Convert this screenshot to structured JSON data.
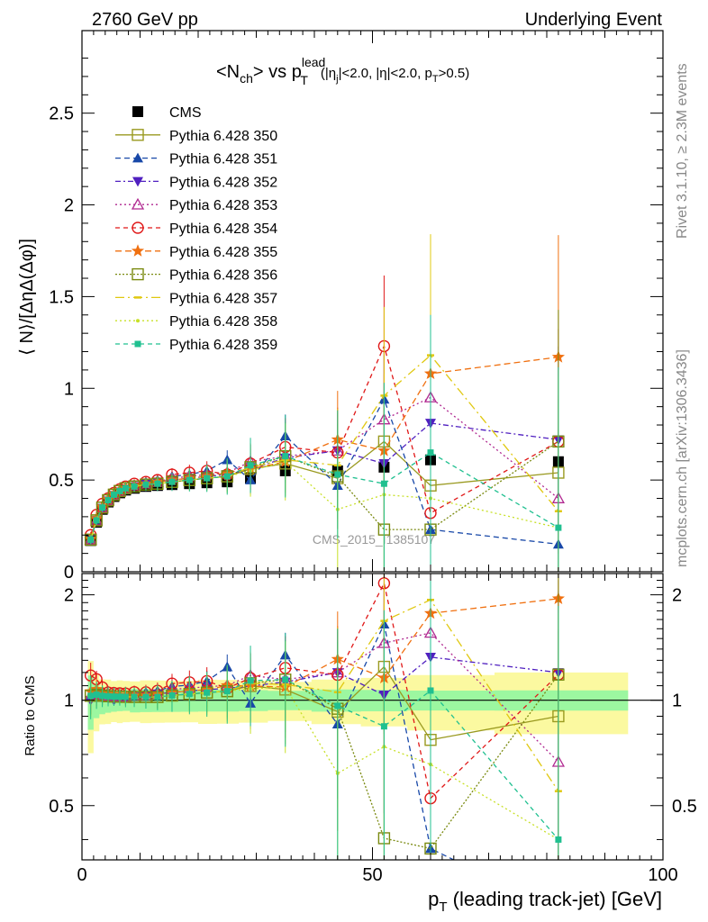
{
  "header": {
    "left": "2760 GeV pp",
    "right": "Underlying Event"
  },
  "side_labels": {
    "top": "Rivet 3.1.10, ≥ 2.3M events",
    "bottom": "mcplots.cern.ch [arXiv:1306.3436]"
  },
  "chart_data": {
    "type": "line",
    "title": {
      "main": "<N",
      "main_sub": "ch",
      "vs": "> vs p",
      "p_sup": "lead",
      "p_sub": "T",
      "cuts_a": "(|η",
      "cuts_a_sub": "j",
      "cuts_b": "|<2.0, |η|<2.0, p",
      "cuts_b_sub": "T",
      "cuts_c": ">0.5)"
    },
    "watermark": "CMS_2015_I1385107",
    "ylabel": "⟨ N⟩/[ΔηΔ(Δφ)]",
    "ratio_ylabel": "Ratio to CMS",
    "xlabel": {
      "main": "p",
      "sub": "T",
      "rest": " (leading track-jet) [GeV]"
    },
    "xlim": [
      0,
      100
    ],
    "ylim": [
      0,
      2.95
    ],
    "ratio_ylim": [
      0.35,
      2.3
    ],
    "x_ticks": [
      0,
      50,
      100
    ],
    "x_tick_labels": [
      "0",
      "50",
      "100"
    ],
    "y_ticks": [
      0,
      0.5,
      1,
      1.5,
      2,
      2.5
    ],
    "y_tick_labels": [
      "0",
      "0.5",
      "1",
      "1.5",
      "2",
      "2.5"
    ],
    "ratio_y_ticks": [
      0.5,
      1,
      2
    ],
    "ratio_y_tick_labels": [
      "0.5",
      "1",
      "2"
    ],
    "grid": false,
    "legend_position": "top-left",
    "x": [
      1.5,
      2.5,
      3.5,
      4.5,
      5.5,
      6.5,
      7.5,
      9,
      11,
      13,
      15.5,
      18.5,
      21.5,
      25,
      29,
      35,
      44,
      52,
      60,
      82
    ],
    "cms": [
      0.17,
      0.27,
      0.34,
      0.38,
      0.41,
      0.43,
      0.445,
      0.455,
      0.465,
      0.47,
      0.475,
      0.48,
      0.485,
      0.49,
      0.51,
      0.55,
      0.55,
      0.57,
      0.61,
      0.6
    ],
    "cms_band_inner": [
      0.03,
      0.03,
      0.03,
      0.03,
      0.03,
      0.03,
      0.03,
      0.035,
      0.035,
      0.035,
      0.035,
      0.035,
      0.035,
      0.035,
      0.035,
      0.035,
      0.04,
      0.04,
      0.04,
      0.04
    ],
    "cms_band_outer": [
      0.05,
      0.05,
      0.05,
      0.055,
      0.055,
      0.06,
      0.06,
      0.06,
      0.065,
      0.065,
      0.065,
      0.065,
      0.07,
      0.07,
      0.07,
      0.07,
      0.08,
      0.09,
      0.11,
      0.12
    ],
    "series": [
      {
        "name": "CMS",
        "color": "#000000",
        "marker": "square-filled",
        "dash": "",
        "values": [
          0.17,
          0.27,
          0.34,
          0.38,
          0.41,
          0.43,
          0.445,
          0.455,
          0.465,
          0.47,
          0.475,
          0.48,
          0.485,
          0.49,
          0.51,
          0.55,
          0.55,
          0.57,
          0.61,
          0.6
        ]
      },
      {
        "name": "Pythia 6.428 350",
        "color": "#9a9a20",
        "marker": "square-open",
        "dash": "",
        "values": [
          0.175,
          0.28,
          0.35,
          0.39,
          0.42,
          0.44,
          0.455,
          0.465,
          0.475,
          0.48,
          0.49,
          0.5,
          0.51,
          0.52,
          0.56,
          0.59,
          0.51,
          0.71,
          0.47,
          0.54
        ]
      },
      {
        "name": "Pythia 6.428 351",
        "color": "#1848a8",
        "marker": "triangle-up-filled",
        "dash": "6,4",
        "values": [
          0.175,
          0.285,
          0.355,
          0.395,
          0.425,
          0.445,
          0.46,
          0.475,
          0.49,
          0.5,
          0.52,
          0.53,
          0.55,
          0.61,
          0.5,
          0.74,
          0.47,
          0.94,
          0.23,
          0.15
        ]
      },
      {
        "name": "Pythia 6.428 352",
        "color": "#5020c0",
        "marker": "triangle-down-filled",
        "dash": "6,3,2,3",
        "values": [
          0.17,
          0.28,
          0.345,
          0.385,
          0.41,
          0.435,
          0.45,
          0.465,
          0.48,
          0.49,
          0.5,
          0.51,
          0.52,
          0.53,
          0.56,
          0.62,
          0.66,
          0.59,
          0.81,
          0.72
        ]
      },
      {
        "name": "Pythia 6.428 353",
        "color": "#b02890",
        "marker": "triangle-up-open",
        "dash": "2,3",
        "values": [
          0.175,
          0.28,
          0.35,
          0.39,
          0.42,
          0.44,
          0.455,
          0.47,
          0.48,
          0.49,
          0.51,
          0.52,
          0.53,
          0.54,
          0.6,
          0.63,
          0.66,
          0.83,
          0.95,
          0.4
        ]
      },
      {
        "name": "Pythia 6.428 354",
        "color": "#e01818",
        "marker": "circle-open",
        "dash": "5,4",
        "values": [
          0.2,
          0.31,
          0.37,
          0.4,
          0.43,
          0.45,
          0.465,
          0.48,
          0.49,
          0.5,
          0.53,
          0.54,
          0.55,
          0.53,
          0.59,
          0.68,
          0.65,
          1.23,
          0.32,
          0.71
        ]
      },
      {
        "name": "Pythia 6.428 355",
        "color": "#f07010",
        "marker": "star-filled",
        "dash": "7,4",
        "values": [
          0.18,
          0.29,
          0.355,
          0.395,
          0.425,
          0.445,
          0.46,
          0.47,
          0.48,
          0.49,
          0.5,
          0.51,
          0.52,
          0.54,
          0.56,
          0.6,
          0.72,
          0.66,
          1.08,
          1.17
        ]
      },
      {
        "name": "Pythia 6.428 356",
        "color": "#7a8a10",
        "marker": "square-open",
        "dash": "2,2",
        "values": [
          0.175,
          0.28,
          0.35,
          0.39,
          0.42,
          0.44,
          0.455,
          0.465,
          0.475,
          0.48,
          0.49,
          0.5,
          0.51,
          0.52,
          0.57,
          0.63,
          0.52,
          0.23,
          0.23,
          0.71
        ]
      },
      {
        "name": "Pythia 6.428 357",
        "color": "#e0c810",
        "marker": "tick-small",
        "dash": "10,4,2,4",
        "values": [
          0.175,
          0.28,
          0.35,
          0.39,
          0.42,
          0.44,
          0.455,
          0.465,
          0.475,
          0.48,
          0.49,
          0.5,
          0.51,
          0.52,
          0.57,
          0.61,
          0.58,
          0.96,
          1.18,
          0.33
        ]
      },
      {
        "name": "Pythia 6.428 358",
        "color": "#c8e028",
        "marker": "dot-small",
        "dash": "2,3",
        "values": [
          0.175,
          0.28,
          0.35,
          0.39,
          0.42,
          0.44,
          0.455,
          0.465,
          0.475,
          0.48,
          0.49,
          0.5,
          0.51,
          0.52,
          0.55,
          0.6,
          0.34,
          0.42,
          0.4,
          0.24
        ]
      },
      {
        "name": "Pythia 6.428 359",
        "color": "#20c090",
        "marker": "square-small-filled",
        "dash": "5,4",
        "values": [
          0.175,
          0.28,
          0.35,
          0.39,
          0.42,
          0.44,
          0.455,
          0.465,
          0.475,
          0.48,
          0.49,
          0.5,
          0.51,
          0.52,
          0.58,
          0.63,
          0.53,
          0.48,
          0.65,
          0.24
        ]
      }
    ]
  }
}
